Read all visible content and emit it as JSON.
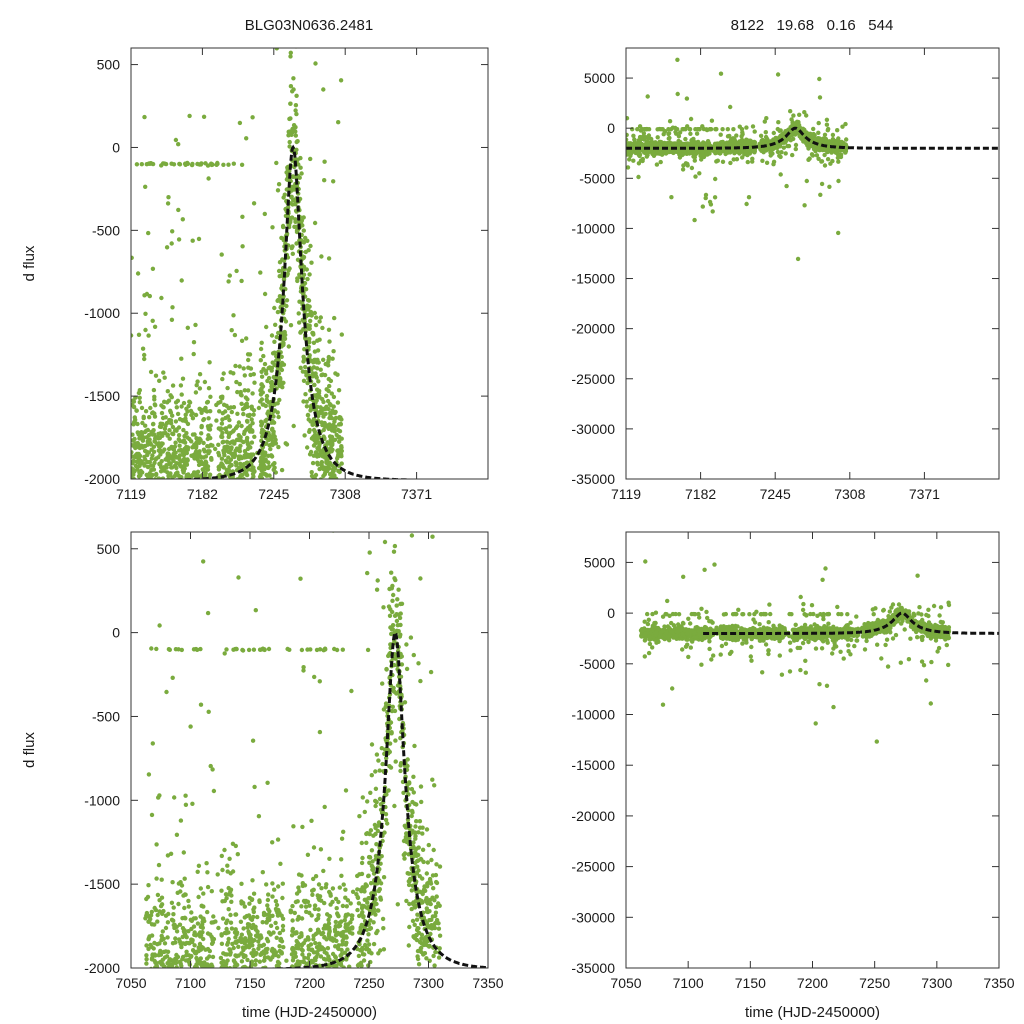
{
  "page_title": "BLG03N0636.2481",
  "page_stats": "8122   19.68   0.16   544",
  "colors": {
    "points": "#7aab3e",
    "model": "#111111",
    "frame": "#333333"
  },
  "chart_data": [
    {
      "type": "scatter",
      "panel": "top-left",
      "ylabel": "d flux",
      "xlabel": "",
      "xlim": [
        7119,
        7434
      ],
      "ylim": [
        -2000,
        600
      ],
      "xticks": [
        7119,
        7182,
        7245,
        7308,
        7371
      ],
      "yticks": [
        -2000,
        -1500,
        -1000,
        -500,
        0,
        500
      ],
      "series": [
        {
          "name": "observations",
          "style": "points",
          "x_range": [
            7119,
            7305
          ]
        },
        {
          "name": "model",
          "style": "dashed-line",
          "t0": 7262,
          "peak": 0,
          "baseline": -2010
        }
      ]
    },
    {
      "type": "scatter",
      "panel": "top-right",
      "ylabel": "",
      "xlabel": "",
      "xlim": [
        7119,
        7434
      ],
      "ylim": [
        -35000,
        8000
      ],
      "xticks": [
        7119,
        7182,
        7245,
        7308,
        7371
      ],
      "yticks": [
        -35000,
        -30000,
        -25000,
        -20000,
        -15000,
        -10000,
        -5000,
        0,
        5000
      ],
      "series": [
        {
          "name": "observations",
          "style": "points",
          "x_range": [
            7119,
            7305
          ]
        },
        {
          "name": "model",
          "style": "dashed-line",
          "t0": 7262,
          "peak": 0,
          "baseline": -2010
        }
      ]
    },
    {
      "type": "scatter",
      "panel": "bottom-left",
      "ylabel": "d flux",
      "xlabel": "time (HJD-2450000)",
      "xlim": [
        7050,
        7350
      ],
      "ylim": [
        -2000,
        600
      ],
      "xticks": [
        7050,
        7100,
        7150,
        7200,
        7250,
        7300,
        7350
      ],
      "yticks": [
        -2000,
        -1500,
        -1000,
        -500,
        0,
        500
      ],
      "series": [
        {
          "name": "observations",
          "style": "points",
          "x_range": [
            7062,
            7310
          ]
        },
        {
          "name": "model",
          "style": "dashed-line",
          "t0": 7272,
          "peak": 0,
          "baseline": -2010
        }
      ]
    },
    {
      "type": "scatter",
      "panel": "bottom-right",
      "ylabel": "",
      "xlabel": "time (HJD-2450000)",
      "xlim": [
        7050,
        7350
      ],
      "ylim": [
        -35000,
        8000
      ],
      "xticks": [
        7050,
        7100,
        7150,
        7200,
        7250,
        7300,
        7350
      ],
      "yticks": [
        -35000,
        -30000,
        -25000,
        -20000,
        -15000,
        -10000,
        -5000,
        0,
        5000
      ],
      "series": [
        {
          "name": "observations",
          "style": "points",
          "x_range": [
            7062,
            7310
          ]
        },
        {
          "name": "model",
          "style": "dashed-line",
          "t0": 7272,
          "peak": 0,
          "baseline": -2010
        }
      ]
    }
  ]
}
